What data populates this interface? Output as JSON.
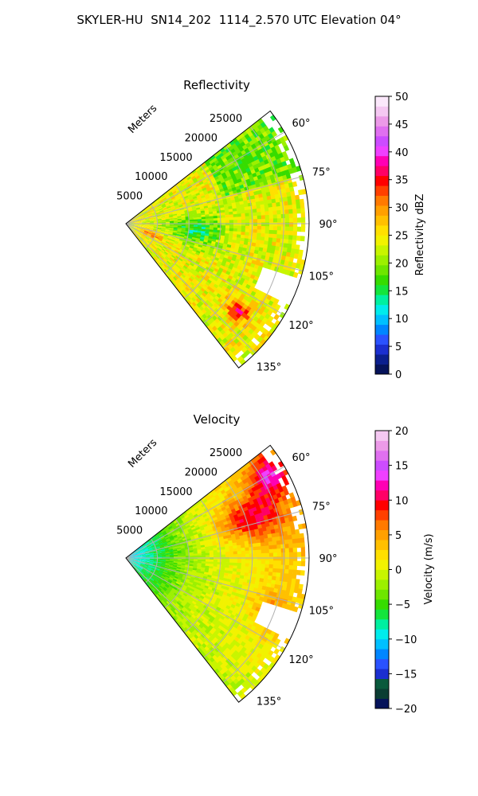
{
  "title": "SKYLER-HU  SN14_202  1114_2.570 UTC Elevation 04°",
  "chart_data": [
    {
      "type": "heatmap",
      "subtype": "polar-sector",
      "title": "Reflectivity",
      "radial_label": "Meters",
      "radial_ticks": [
        5000,
        10000,
        15000,
        20000,
        25000
      ],
      "radial_tick_labels": [
        "5000",
        "10000",
        "15000",
        "20000",
        "25000"
      ],
      "rmax": 29000,
      "azimuth_range_deg": [
        52,
        142
      ],
      "azimuth_ticks": [
        60,
        75,
        90,
        105,
        120,
        135
      ],
      "azimuth_tick_labels": [
        "60°",
        "75°",
        "90°",
        "105°",
        "120°",
        "135°"
      ],
      "grid": true,
      "colorbar": {
        "label": "Reflectivity dBZ",
        "min": 0,
        "max": 50,
        "ticks": [
          0,
          5,
          10,
          15,
          20,
          25,
          30,
          35,
          40,
          45,
          50
        ],
        "tick_labels": [
          "0",
          "5",
          "10",
          "15",
          "20",
          "25",
          "30",
          "35",
          "40",
          "45",
          "50"
        ],
        "colors": [
          "#06135a",
          "#0b1f8e",
          "#1b2fd0",
          "#2a52ff",
          "#0086ff",
          "#00c0ff",
          "#00ecec",
          "#00f0a0",
          "#14e53c",
          "#36dc00",
          "#6ee600",
          "#9cf000",
          "#c8f500",
          "#f2f200",
          "#ffe000",
          "#ffc000",
          "#ffa000",
          "#ff7a00",
          "#ff4000",
          "#ff0000",
          "#ff0066",
          "#ff00b4",
          "#f040ff",
          "#cc4cff",
          "#e070f0",
          "#ec9ae8",
          "#f5c8f2",
          "#fbe8fb"
        ]
      }
    },
    {
      "type": "heatmap",
      "subtype": "polar-sector",
      "title": "Velocity",
      "radial_label": "Meters",
      "radial_ticks": [
        5000,
        10000,
        15000,
        20000,
        25000
      ],
      "radial_tick_labels": [
        "5000",
        "10000",
        "15000",
        "20000",
        "25000"
      ],
      "rmax": 29000,
      "azimuth_range_deg": [
        52,
        142
      ],
      "azimuth_ticks": [
        60,
        75,
        90,
        105,
        120,
        135
      ],
      "azimuth_tick_labels": [
        "60°",
        "75°",
        "90°",
        "105°",
        "120°",
        "135°"
      ],
      "grid": true,
      "colorbar": {
        "label": "Velocity (m/s)",
        "min": -20,
        "max": 20,
        "ticks": [
          -20,
          -15,
          -10,
          -5,
          0,
          5,
          10,
          15,
          20
        ],
        "tick_labels": [
          "−20",
          "−15",
          "−10",
          "−5",
          "0",
          "5",
          "10",
          "15",
          "20"
        ],
        "colors": [
          "#06135a",
          "#0b3d33",
          "#0a5a3c",
          "#1b2fd0",
          "#2a52ff",
          "#0086ff",
          "#00c0ff",
          "#00ecec",
          "#00f0a0",
          "#14e53c",
          "#36dc00",
          "#6ee600",
          "#9cf000",
          "#c8f500",
          "#f2f200",
          "#ffe000",
          "#ffc000",
          "#ffa000",
          "#ff7a00",
          "#ff4000",
          "#ff0000",
          "#ff0066",
          "#ff00b4",
          "#f040ff",
          "#cc4cff",
          "#e070f0",
          "#ec9ae8",
          "#f5c8f2"
        ]
      }
    }
  ]
}
